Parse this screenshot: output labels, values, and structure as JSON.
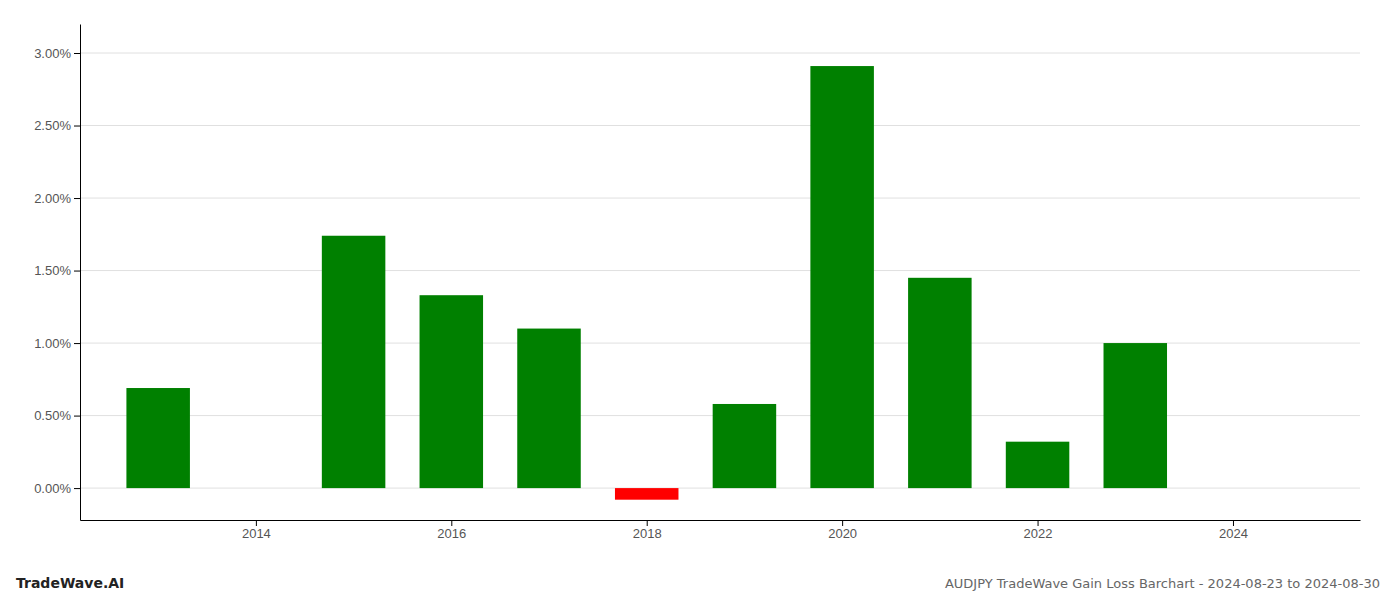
{
  "chart_data": {
    "type": "bar",
    "title": "AUDJPY TradeWave Gain Loss Barchart - 2024-08-23 to 2024-08-30",
    "annotations": [
      "TradeWave.AI"
    ],
    "x": [
      2013,
      2015,
      2016,
      2017,
      2018,
      2019,
      2020,
      2021,
      2022,
      2023
    ],
    "values": [
      0.0069,
      0.0174,
      0.0133,
      0.011,
      -0.0008,
      0.0058,
      0.0291,
      0.0145,
      0.0032,
      0.01
    ],
    "colors": [
      "#008000",
      "#008000",
      "#008000",
      "#008000",
      "#ff0000",
      "#008000",
      "#008000",
      "#008000",
      "#008000",
      "#008000"
    ],
    "xlim": [
      2012.2,
      2025.3
    ],
    "xticks": [
      2014,
      2016,
      2018,
      2020,
      2022,
      2024
    ],
    "ylim": [
      -0.0022,
      0.032
    ],
    "yticks": [
      {
        "value": 0.0,
        "label": "0.00%"
      },
      {
        "value": 0.005,
        "label": "0.50%"
      },
      {
        "value": 0.01,
        "label": "1.00%"
      },
      {
        "value": 0.015,
        "label": "1.50%"
      },
      {
        "value": 0.02,
        "label": "2.00%"
      },
      {
        "value": 0.025,
        "label": "2.50%"
      },
      {
        "value": 0.03,
        "label": "3.00%"
      }
    ],
    "grid": true
  }
}
